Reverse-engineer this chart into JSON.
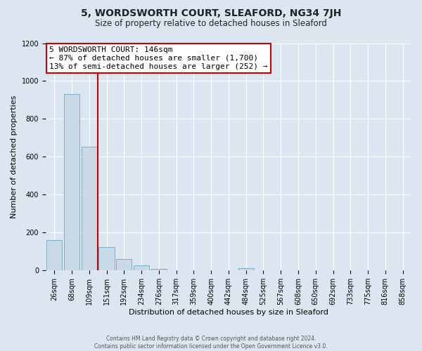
{
  "title": "5, WORDSWORTH COURT, SLEAFORD, NG34 7JH",
  "subtitle": "Size of property relative to detached houses in Sleaford",
  "xlabel": "Distribution of detached houses by size in Sleaford",
  "ylabel": "Number of detached properties",
  "footer_line1": "Contains HM Land Registry data © Crown copyright and database right 2024.",
  "footer_line2": "Contains public sector information licensed under the Open Government Licence v3.0.",
  "bin_labels": [
    "26sqm",
    "68sqm",
    "109sqm",
    "151sqm",
    "192sqm",
    "234sqm",
    "276sqm",
    "317sqm",
    "359sqm",
    "400sqm",
    "442sqm",
    "484sqm",
    "525sqm",
    "567sqm",
    "608sqm",
    "650sqm",
    "692sqm",
    "733sqm",
    "775sqm",
    "816sqm",
    "858sqm"
  ],
  "bar_values": [
    160,
    930,
    655,
    125,
    60,
    28,
    8,
    0,
    0,
    0,
    0,
    12,
    0,
    0,
    0,
    0,
    0,
    0,
    0,
    0,
    0
  ],
  "bar_color": "#c9d9e8",
  "bar_edge_color": "#7aafc8",
  "property_line_color": "#cc0000",
  "property_line_bin": 2.5,
  "annotation_title": "5 WORDSWORTH COURT: 146sqm",
  "annotation_line1": "← 87% of detached houses are smaller (1,700)",
  "annotation_line2": "13% of semi-detached houses are larger (252) →",
  "annotation_box_facecolor": "#ffffff",
  "annotation_box_edgecolor": "#cc0000",
  "ylim_min": 0,
  "ylim_max": 1200,
  "yticks": [
    0,
    200,
    400,
    600,
    800,
    1000,
    1200
  ],
  "background_color": "#dce6f0",
  "plot_bg_color": "#dce6f0",
  "grid_color": "#ffffff",
  "title_fontsize": 10,
  "subtitle_fontsize": 8.5,
  "axis_label_fontsize": 8,
  "tick_fontsize": 7,
  "annotation_fontsize": 8
}
